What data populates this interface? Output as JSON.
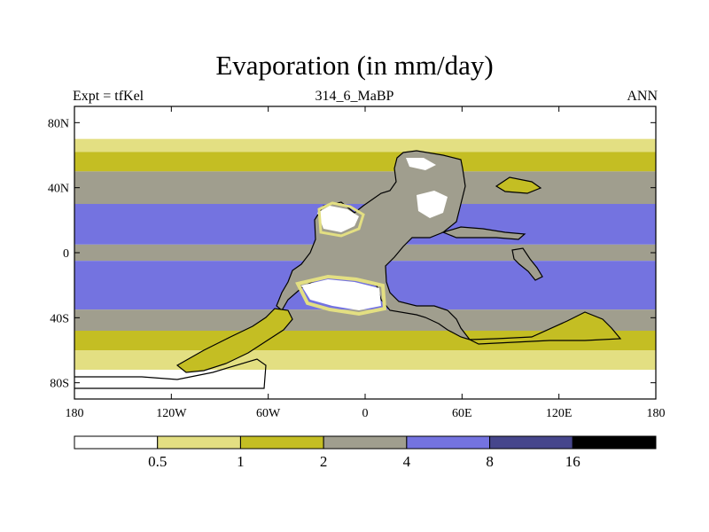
{
  "title": "Evaporation (in mm/day)",
  "subtitle": {
    "left": "Expt = tfKel",
    "center": "314_6_MaBP",
    "right": "ANN"
  },
  "map": {
    "lon_range": [
      -180,
      180
    ],
    "lat_range": [
      -90,
      90
    ],
    "lat_ticks": [
      {
        "value": 80,
        "label": "80N"
      },
      {
        "value": 40,
        "label": "40N"
      },
      {
        "value": 0,
        "label": "0"
      },
      {
        "value": -40,
        "label": "40S"
      },
      {
        "value": -80,
        "label": "80S"
      }
    ],
    "lon_ticks": [
      {
        "value": -180,
        "label": "180"
      },
      {
        "value": -120,
        "label": "120W"
      },
      {
        "value": -60,
        "label": "60W"
      },
      {
        "value": 0,
        "label": "0"
      },
      {
        "value": 60,
        "label": "60E"
      },
      {
        "value": 120,
        "label": "120E"
      },
      {
        "value": 180,
        "label": "180"
      }
    ],
    "zonal_bands": [
      {
        "lat0": 90,
        "lat1": 70,
        "color": "#ffffff"
      },
      {
        "lat0": 70,
        "lat1": 62,
        "color": "#e3df82"
      },
      {
        "lat0": 62,
        "lat1": 50,
        "color": "#c4be23"
      },
      {
        "lat0": 50,
        "lat1": 30,
        "color": "#a09e8e"
      },
      {
        "lat0": 30,
        "lat1": 5,
        "color": "#7473e0"
      },
      {
        "lat0": 5,
        "lat1": -5,
        "color": "#a09e8e"
      },
      {
        "lat0": -5,
        "lat1": -35,
        "color": "#7473e0"
      },
      {
        "lat0": -35,
        "lat1": -48,
        "color": "#a09e8e"
      },
      {
        "lat0": -48,
        "lat1": -60,
        "color": "#c4be23"
      },
      {
        "lat0": -60,
        "lat1": -72,
        "color": "#e3df82"
      },
      {
        "lat0": -72,
        "lat1": -90,
        "color": "#ffffff"
      }
    ]
  },
  "colorbar": {
    "colors": [
      "#ffffff",
      "#e3df82",
      "#c4be23",
      "#a09e8e",
      "#7473e0",
      "#46468c",
      "#000000"
    ],
    "labels": [
      "0.5",
      "1",
      "2",
      "4",
      "8",
      "16"
    ]
  }
}
